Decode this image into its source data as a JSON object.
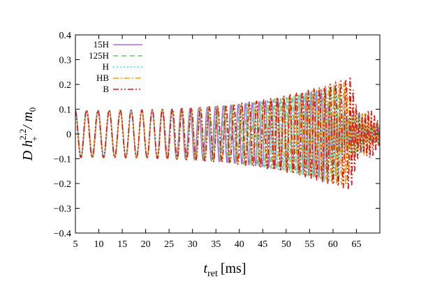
{
  "chart_data": {
    "type": "line",
    "xlabel": {
      "main": "t",
      "sub": "ret",
      "unit": "[ms]"
    },
    "ylabel": {
      "lead": "D h",
      "sup": "2,2",
      "sub": "+",
      "tail": "/ m",
      "tail_sub": "0"
    },
    "xlim": [
      5,
      70
    ],
    "ylim": [
      -0.4,
      0.4
    ],
    "xticks": [
      5,
      10,
      15,
      20,
      25,
      30,
      35,
      40,
      45,
      50,
      55,
      60,
      65
    ],
    "yticks": [
      -0.4,
      -0.3,
      -0.2,
      -0.1,
      0,
      0.1,
      0.2,
      0.3,
      0.4
    ],
    "ytick_labels": [
      "−0.4",
      "−0.3",
      "−0.2",
      "−0.1",
      "0",
      "0.1",
      "0.2",
      "0.3",
      "0.4"
    ],
    "grid": false,
    "legend_position": "top-left",
    "series": [
      {
        "name": "15H",
        "color": "#b366e6",
        "dash": "solid",
        "merger_ms": 58.0,
        "initial_amp": 0.095,
        "peak_amp": 0.19
      },
      {
        "name": "125H",
        "color": "#66cc66",
        "dash": "dashed",
        "merger_ms": 60.0,
        "initial_amp": 0.095,
        "peak_amp": 0.2
      },
      {
        "name": "H",
        "color": "#33e6e6",
        "dash": "dotted",
        "merger_ms": 61.0,
        "initial_amp": 0.095,
        "peak_amp": 0.21
      },
      {
        "name": "HB",
        "color": "#ff9900",
        "dash": "dash-dot",
        "merger_ms": 62.5,
        "initial_amp": 0.095,
        "peak_amp": 0.22
      },
      {
        "name": "B",
        "color": "#dd1111",
        "dash": "dash-dot-dot",
        "merger_ms": 63.5,
        "initial_amp": 0.095,
        "peak_amp": 0.24
      }
    ]
  }
}
